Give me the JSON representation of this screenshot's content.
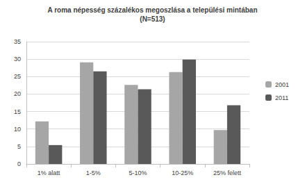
{
  "chart_data": {
    "type": "bar",
    "title": "A roma népesség százalékos megoszlása a települési mintában",
    "subtitle": "(N=513)",
    "categories": [
      "1% alatt",
      "1-5%",
      "5-10%",
      "10-25%",
      "25% felett"
    ],
    "series": [
      {
        "name": "2001",
        "color": "#a6a6a6",
        "values": [
          12.2,
          29.1,
          22.6,
          26.3,
          9.7
        ]
      },
      {
        "name": "2011",
        "color": "#595959",
        "values": [
          5.4,
          26.5,
          21.4,
          29.9,
          16.8
        ]
      }
    ],
    "ylim": [
      0,
      35
    ],
    "yticks": [
      0,
      5,
      10,
      15,
      20,
      25,
      30,
      35
    ],
    "grid": true,
    "legend": "right"
  }
}
